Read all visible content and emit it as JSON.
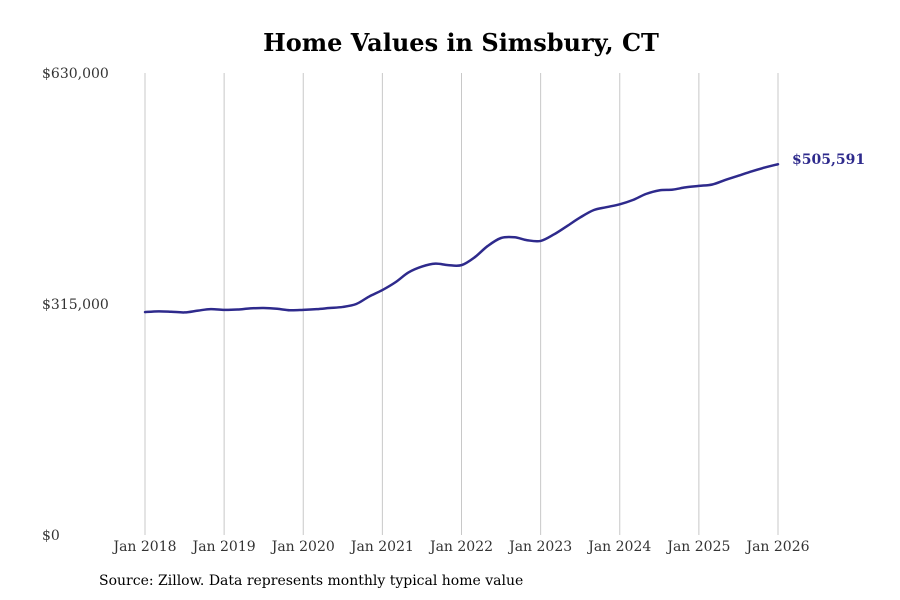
{
  "colors": {
    "line": "#2e2a8c",
    "gridline": "#c8c8c8",
    "text": "#333333",
    "title": "#000000"
  },
  "source_note": "Source: Zillow. Data represents monthly typical home value",
  "chart_data": {
    "type": "line",
    "title": "Home Values in Simsbury, CT",
    "xlabel": "",
    "ylabel": "",
    "grid": "vertical",
    "x_range": [
      2018.0,
      2026.0
    ],
    "ylim": [
      0,
      630000
    ],
    "y_ticks": [
      {
        "value": 0,
        "label": "$0"
      },
      {
        "value": 315000,
        "label": "$315,000"
      },
      {
        "value": 630000,
        "label": "$630,000"
      }
    ],
    "x_ticks": [
      {
        "value": 2018.0,
        "label": "Jan 2018"
      },
      {
        "value": 2019.0,
        "label": "Jan 2019"
      },
      {
        "value": 2020.0,
        "label": "Jan 2020"
      },
      {
        "value": 2021.0,
        "label": "Jan 2021"
      },
      {
        "value": 2022.0,
        "label": "Jan 2022"
      },
      {
        "value": 2023.0,
        "label": "Jan 2023"
      },
      {
        "value": 2024.0,
        "label": "Jan 2024"
      },
      {
        "value": 2025.0,
        "label": "Jan 2025"
      },
      {
        "value": 2026.0,
        "label": "Jan 2026"
      }
    ],
    "end_label": "$505,591",
    "series": [
      {
        "name": "Typical home value",
        "x": [
          2018.0,
          2018.17,
          2018.33,
          2018.5,
          2018.67,
          2018.83,
          2019.0,
          2019.17,
          2019.33,
          2019.5,
          2019.67,
          2019.83,
          2020.0,
          2020.17,
          2020.33,
          2020.5,
          2020.67,
          2020.83,
          2021.0,
          2021.17,
          2021.33,
          2021.5,
          2021.67,
          2021.83,
          2022.0,
          2022.17,
          2022.33,
          2022.5,
          2022.67,
          2022.83,
          2023.0,
          2023.17,
          2023.33,
          2023.5,
          2023.67,
          2023.83,
          2024.0,
          2024.17,
          2024.33,
          2024.5,
          2024.67,
          2024.83,
          2025.0,
          2025.17,
          2025.33,
          2025.5,
          2025.67,
          2025.83,
          2026.0
        ],
        "values": [
          304000,
          305000,
          304500,
          303500,
          306000,
          308000,
          307000,
          307500,
          309000,
          309500,
          308500,
          306500,
          307000,
          308000,
          309500,
          311000,
          315000,
          325000,
          334000,
          345000,
          358000,
          366000,
          370000,
          368000,
          368000,
          379000,
          394000,
          405000,
          406000,
          402000,
          401000,
          410000,
          421000,
          433000,
          443000,
          447000,
          451000,
          457000,
          465000,
          470000,
          471000,
          474000,
          476000,
          478000,
          484000,
          490000,
          496000,
          501000,
          505591
        ]
      }
    ]
  }
}
